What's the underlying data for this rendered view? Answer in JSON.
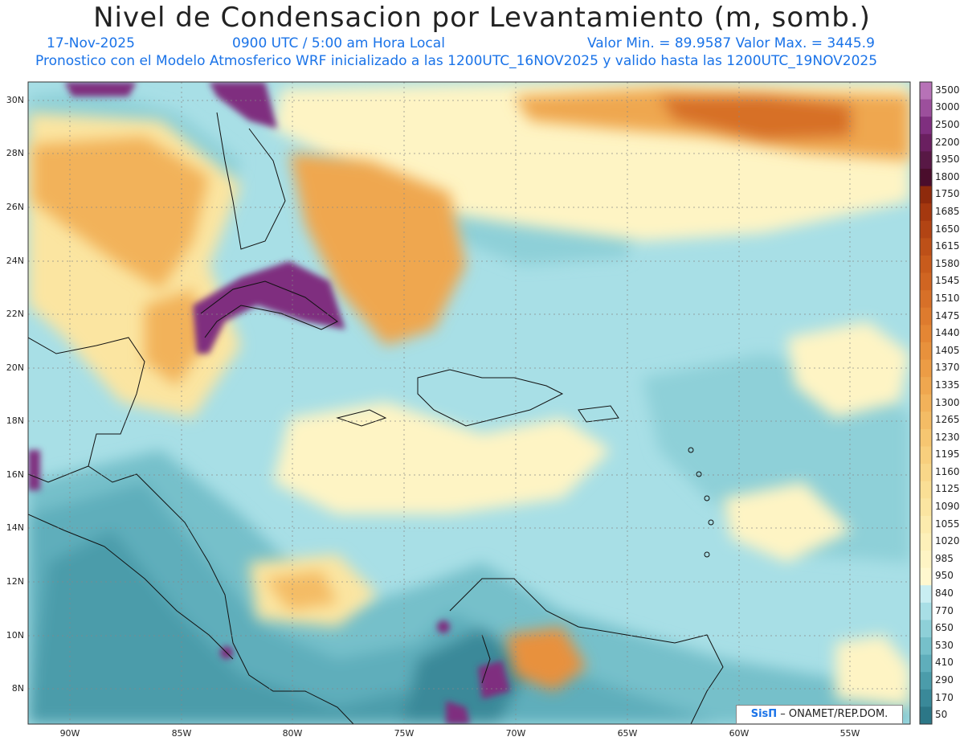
{
  "header": {
    "title": "Nivel de Condensacion por Levantamiento (m, somb.)",
    "date": "17-Nov-2025",
    "time": "0900 UTC / 5:00 am Hora Local",
    "stats": "Valor Min. = 89.9587  Valor Max. = 3445.9",
    "forecast_note": "Pronostico con el Modelo Atmosferico WRF inicializado a las 1200UTC_16NOV2025 y valido hasta las  1200UTC_19NOV2025"
  },
  "axes": {
    "lat_labels": [
      "30N",
      "28N",
      "26N",
      "24N",
      "22N",
      "20N",
      "18N",
      "16N",
      "14N",
      "12N",
      "10N",
      "8N"
    ],
    "lon_labels": [
      "90W",
      "85W",
      "80W",
      "75W",
      "70W",
      "65W",
      "60W",
      "55W"
    ]
  },
  "colorbar": {
    "levels": [
      "3500",
      "3000",
      "2500",
      "2200",
      "1950",
      "1800",
      "1750",
      "1685",
      "1650",
      "1615",
      "1580",
      "1545",
      "1510",
      "1475",
      "1440",
      "1405",
      "1370",
      "1335",
      "1300",
      "1265",
      "1230",
      "1195",
      "1160",
      "1125",
      "1090",
      "1055",
      "1020",
      "985",
      "950",
      "840",
      "770",
      "650",
      "530",
      "410",
      "290",
      "170",
      "50"
    ],
    "colors": [
      "#b772b7",
      "#9c4f9c",
      "#7f2f7f",
      "#6a1f60",
      "#581845",
      "#4a0d2c",
      "#8e2a0c",
      "#a5380f",
      "#b24414",
      "#bd5018",
      "#c85b1c",
      "#d06522",
      "#d77028",
      "#de7b2e",
      "#e48634",
      "#e8913c",
      "#ec9c45",
      "#efa74f",
      "#f2b25a",
      "#f4bc65",
      "#f6c671",
      "#f8cf7d",
      "#f9d789",
      "#fadf95",
      "#fbe5a1",
      "#fcebad",
      "#fdf0b9",
      "#fef4c4",
      "#fff8cf",
      "#c9eef2",
      "#a8dfe6",
      "#8ed0d8",
      "#76c0ca",
      "#5faebb",
      "#4b9caa",
      "#3a8999",
      "#2c7787"
    ]
  },
  "credit": {
    "brand": "SisΠ",
    "text": " – ONAMET/REP.DOM."
  }
}
